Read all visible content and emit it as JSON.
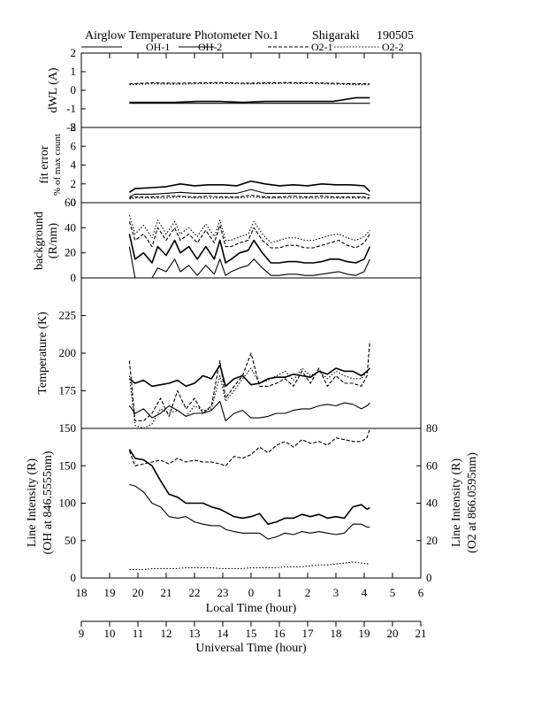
{
  "header": {
    "title": "Airglow Temperature Photometer No.1",
    "station": "Shigaraki",
    "date": "190505"
  },
  "legend": [
    {
      "name": "OH-1",
      "dash": "solid"
    },
    {
      "name": "OH-2",
      "dash": "solid"
    },
    {
      "name": "O2-1",
      "dash": "dash"
    },
    {
      "name": "O2-2",
      "dash": "dot"
    }
  ],
  "axes": {
    "local_time_label": "Local Time (hour)",
    "universal_time_label": "Universal Time (hour)",
    "local_ticks": [
      "18",
      "19",
      "20",
      "21",
      "22",
      "23",
      "0",
      "1",
      "2",
      "3",
      "4",
      "5",
      "6"
    ],
    "universal_ticks": [
      "9",
      "10",
      "11",
      "12",
      "13",
      "14",
      "15",
      "16",
      "17",
      "18",
      "19",
      "20",
      "21"
    ]
  },
  "chart_data": [
    {
      "type": "line",
      "panel": "dwl",
      "ylabel": "dWL (A)",
      "ylim": [
        -2,
        2
      ],
      "yticks": [
        "2",
        "1",
        "0",
        "-1",
        "-2"
      ],
      "x": [
        19.7,
        20.5,
        21.3,
        22.1,
        22.9,
        23.7,
        0.5,
        1.3,
        2.1,
        2.9,
        3.7,
        4.2
      ],
      "series": [
        {
          "name": "OH-1",
          "values": [
            -0.65,
            -0.65,
            -0.65,
            -0.6,
            -0.6,
            -0.65,
            -0.6,
            -0.6,
            -0.6,
            -0.6,
            -0.4,
            -0.4
          ]
        },
        {
          "name": "OH-2",
          "values": [
            -0.7,
            -0.7,
            -0.7,
            -0.7,
            -0.7,
            -0.7,
            -0.7,
            -0.7,
            -0.7,
            -0.7,
            -0.7,
            -0.7
          ]
        },
        {
          "name": "O2-1",
          "values": [
            0.35,
            0.4,
            0.38,
            0.4,
            0.42,
            0.38,
            0.4,
            0.42,
            0.4,
            0.38,
            0.35,
            0.35
          ]
        },
        {
          "name": "O2-2",
          "values": [
            0.3,
            0.35,
            0.33,
            0.35,
            0.37,
            0.35,
            0.35,
            0.37,
            0.36,
            0.34,
            0.3,
            0.3
          ]
        }
      ]
    },
    {
      "type": "line",
      "panel": "fit_error",
      "ylabel": "fit error",
      "ylabel2": "% of max count",
      "ylim": [
        0,
        8
      ],
      "yticks": [
        "8",
        "6",
        "4",
        "2",
        "0"
      ],
      "x": [
        19.7,
        19.9,
        20.5,
        21.0,
        21.5,
        22.0,
        22.5,
        23.0,
        23.5,
        0.0,
        0.5,
        1.0,
        1.5,
        2.0,
        2.5,
        3.0,
        3.5,
        4.0,
        4.2
      ],
      "series": [
        {
          "name": "OH-1",
          "values": [
            1.1,
            1.5,
            1.6,
            1.7,
            2.0,
            1.8,
            1.9,
            1.9,
            1.8,
            2.3,
            2.0,
            1.8,
            1.9,
            1.8,
            2.0,
            1.9,
            1.9,
            1.8,
            1.2
          ]
        },
        {
          "name": "OH-2",
          "values": [
            0.6,
            0.9,
            0.9,
            1.0,
            1.1,
            1.0,
            1.0,
            1.0,
            1.0,
            1.4,
            1.0,
            1.0,
            1.0,
            1.0,
            1.0,
            1.0,
            1.0,
            1.0,
            0.8
          ]
        },
        {
          "name": "O2-1",
          "values": [
            0.5,
            0.6,
            0.6,
            0.7,
            0.7,
            0.6,
            0.7,
            0.6,
            0.6,
            0.8,
            0.6,
            0.6,
            0.7,
            0.6,
            0.7,
            0.6,
            0.6,
            0.6,
            0.5
          ]
        },
        {
          "name": "O2-2",
          "values": [
            0.4,
            0.5,
            0.5,
            0.5,
            0.6,
            0.5,
            0.5,
            0.5,
            0.5,
            0.6,
            0.5,
            0.5,
            0.5,
            0.5,
            0.5,
            0.5,
            0.5,
            0.5,
            0.4
          ]
        }
      ]
    },
    {
      "type": "line",
      "panel": "background",
      "ylabel": "background",
      "ylabel2": "(R/nm)",
      "ylim": [
        0,
        60
      ],
      "yticks": [
        "60",
        "40",
        "20",
        "0"
      ],
      "x": [
        19.7,
        19.9,
        20.2,
        20.5,
        20.7,
        21.0,
        21.3,
        21.5,
        21.8,
        22.1,
        22.4,
        22.7,
        22.9,
        23.1,
        23.3,
        23.6,
        23.9,
        0.1,
        0.4,
        0.7,
        1.0,
        1.3,
        1.6,
        1.9,
        2.2,
        2.5,
        2.8,
        3.1,
        3.4,
        3.7,
        4.0,
        4.2
      ],
      "series": [
        {
          "name": "OH-1",
          "values": [
            35,
            15,
            20,
            12,
            25,
            18,
            30,
            20,
            25,
            15,
            25,
            15,
            30,
            12,
            15,
            20,
            22,
            30,
            20,
            12,
            12,
            13,
            13,
            12,
            12,
            13,
            15,
            15,
            13,
            12,
            15,
            25
          ]
        },
        {
          "name": "OH-2",
          "values": [
            25,
            0,
            0,
            0,
            8,
            5,
            15,
            5,
            10,
            2,
            10,
            3,
            15,
            2,
            5,
            8,
            10,
            15,
            8,
            2,
            2,
            3,
            3,
            2,
            2,
            3,
            4,
            5,
            3,
            2,
            5,
            15
          ]
        },
        {
          "name": "O2-1",
          "values": [
            45,
            30,
            35,
            25,
            40,
            30,
            40,
            30,
            35,
            28,
            38,
            28,
            42,
            25,
            25,
            28,
            30,
            40,
            30,
            24,
            24,
            26,
            26,
            24,
            24,
            26,
            28,
            30,
            26,
            24,
            28,
            35
          ]
        },
        {
          "name": "O2-2",
          "values": [
            50,
            35,
            42,
            32,
            46,
            35,
            45,
            35,
            40,
            33,
            43,
            33,
            46,
            30,
            30,
            33,
            35,
            45,
            35,
            28,
            30,
            32,
            32,
            30,
            30,
            32,
            34,
            35,
            32,
            30,
            33,
            38
          ]
        }
      ]
    },
    {
      "type": "line",
      "panel": "temperature",
      "ylabel": "Temperature (K)",
      "ylim": [
        150,
        250
      ],
      "yticks": [
        "225",
        "200",
        "175",
        "150"
      ],
      "x": [
        19.7,
        19.9,
        20.2,
        20.5,
        20.8,
        21.1,
        21.4,
        21.7,
        22.0,
        22.3,
        22.6,
        22.9,
        23.1,
        23.4,
        23.7,
        0.0,
        0.3,
        0.6,
        0.9,
        1.2,
        1.5,
        1.8,
        2.1,
        2.4,
        2.7,
        3.0,
        3.3,
        3.6,
        3.9,
        4.1,
        4.2
      ],
      "series": [
        {
          "name": "OH-1",
          "values": [
            183,
            180,
            182,
            178,
            179,
            180,
            182,
            178,
            180,
            185,
            183,
            192,
            178,
            183,
            185,
            179,
            180,
            183,
            184,
            184,
            186,
            185,
            184,
            188,
            186,
            190,
            188,
            188,
            185,
            188,
            190
          ]
        },
        {
          "name": "OH-2",
          "values": [
            165,
            160,
            163,
            157,
            160,
            165,
            162,
            158,
            160,
            160,
            162,
            168,
            155,
            160,
            162,
            157,
            157,
            158,
            160,
            160,
            162,
            163,
            163,
            165,
            166,
            165,
            167,
            166,
            163,
            165,
            167
          ]
        },
        {
          "name": "O2-1",
          "values": [
            195,
            155,
            155,
            160,
            170,
            158,
            175,
            163,
            170,
            160,
            165,
            195,
            170,
            178,
            185,
            200,
            178,
            178,
            180,
            183,
            178,
            188,
            180,
            190,
            178,
            185,
            180,
            180,
            178,
            185,
            208
          ]
        },
        {
          "name": "O2-2",
          "values": [
            185,
            152,
            150,
            153,
            163,
            160,
            162,
            158,
            165,
            162,
            163,
            185,
            168,
            175,
            183,
            190,
            180,
            182,
            185,
            188,
            182,
            190,
            185,
            188,
            183,
            188,
            185,
            183,
            183,
            188,
            190
          ]
        }
      ]
    },
    {
      "type": "line",
      "panel": "line_intensity",
      "ylabel": "Line Intensity (R)",
      "ylabel2": "(OH at 846.5555nm)",
      "ylabel_right": "Line Intensity (R)",
      "ylabel_right2": "(O2 at 866.0595nm)",
      "ylim": [
        0,
        200
      ],
      "ylim_right": [
        0,
        80
      ],
      "yticks": [
        "150",
        "100",
        "50",
        "0"
      ],
      "yticks_right": [
        "80",
        "60",
        "40",
        "20",
        "0"
      ],
      "x": [
        19.7,
        19.9,
        20.2,
        20.5,
        20.8,
        21.1,
        21.4,
        21.7,
        22.0,
        22.3,
        22.6,
        22.9,
        23.1,
        23.4,
        23.7,
        0.0,
        0.3,
        0.6,
        0.9,
        1.2,
        1.5,
        1.8,
        2.1,
        2.4,
        2.7,
        3.0,
        3.3,
        3.6,
        3.9,
        4.1,
        4.2
      ],
      "series": [
        {
          "name": "OH-1",
          "values": [
            172,
            160,
            158,
            150,
            130,
            112,
            108,
            100,
            100,
            100,
            95,
            92,
            88,
            82,
            80,
            82,
            86,
            72,
            75,
            80,
            80,
            85,
            82,
            85,
            80,
            82,
            80,
            95,
            98,
            92,
            94
          ]
        },
        {
          "name": "OH-2",
          "values": [
            125,
            123,
            115,
            100,
            95,
            82,
            80,
            82,
            75,
            72,
            70,
            70,
            65,
            62,
            60,
            60,
            60,
            52,
            55,
            60,
            58,
            62,
            60,
            62,
            60,
            58,
            60,
            72,
            72,
            68,
            68
          ]
        },
        {
          "name": "O2-1",
          "values": [
            68,
            60,
            61,
            62,
            63,
            61,
            64,
            62,
            63,
            62,
            62,
            61,
            60,
            65,
            64,
            66,
            70,
            67,
            71,
            73,
            70,
            74,
            72,
            73,
            71,
            75,
            74,
            73,
            73,
            75,
            80
          ]
        },
        {
          "name": "O2-2",
          "values": [
            4.5,
            4.5,
            4.5,
            5,
            5,
            5,
            5,
            5.5,
            5.5,
            5.5,
            5.5,
            5,
            5,
            5,
            5,
            5.5,
            5.5,
            5.5,
            5.5,
            6,
            6,
            6,
            6.5,
            7,
            7,
            7.5,
            8,
            8.5,
            8,
            7.5,
            8
          ]
        }
      ]
    }
  ]
}
